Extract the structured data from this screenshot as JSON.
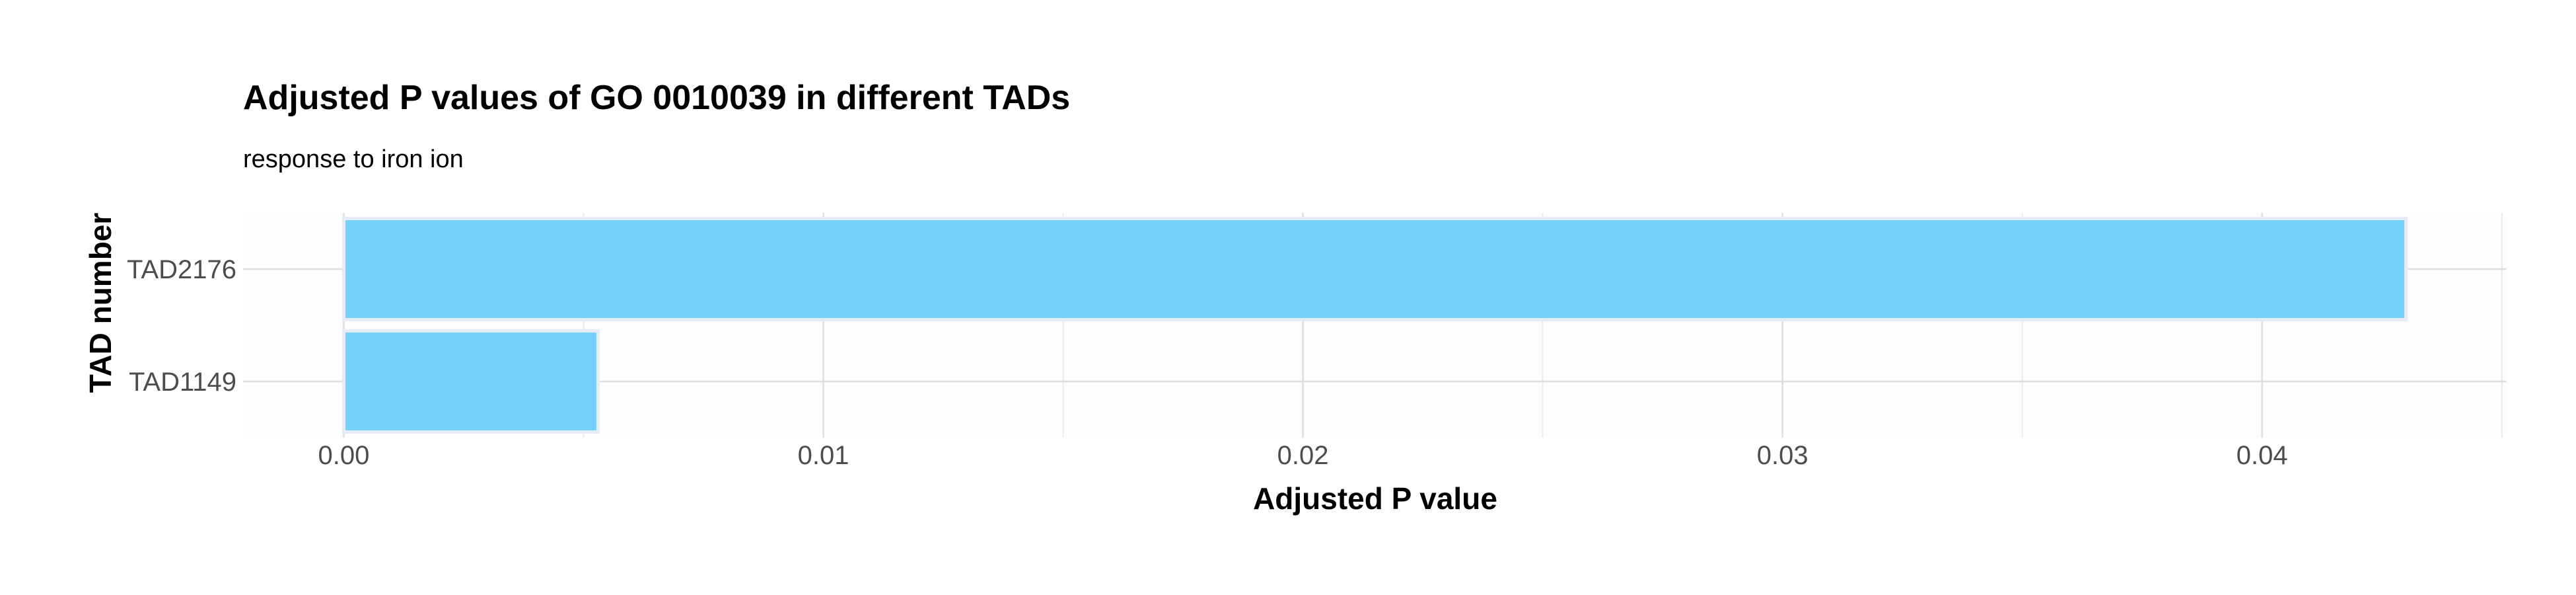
{
  "chart_data": {
    "type": "bar",
    "orientation": "horizontal",
    "title": "Adjusted P values of GO 0010039 in different TADs",
    "subtitle": "response to iron ion",
    "xlabel": "Adjusted P value",
    "ylabel": "TAD number",
    "categories": [
      "TAD1149",
      "TAD2176"
    ],
    "values": [
      0.0053,
      0.043
    ],
    "xlim": [
      -0.0021,
      0.0451
    ],
    "xticks": [
      "0.00",
      "0.01",
      "0.02",
      "0.03",
      "0.04"
    ],
    "xtick_values": [
      0,
      0.01,
      0.02,
      0.03,
      0.04
    ],
    "grid": true,
    "legend": "none",
    "colors": {
      "bar_fill": "#75CFFB",
      "bar_outline": "#E6ECF5",
      "panel_bg": "#FDFCFF"
    }
  }
}
